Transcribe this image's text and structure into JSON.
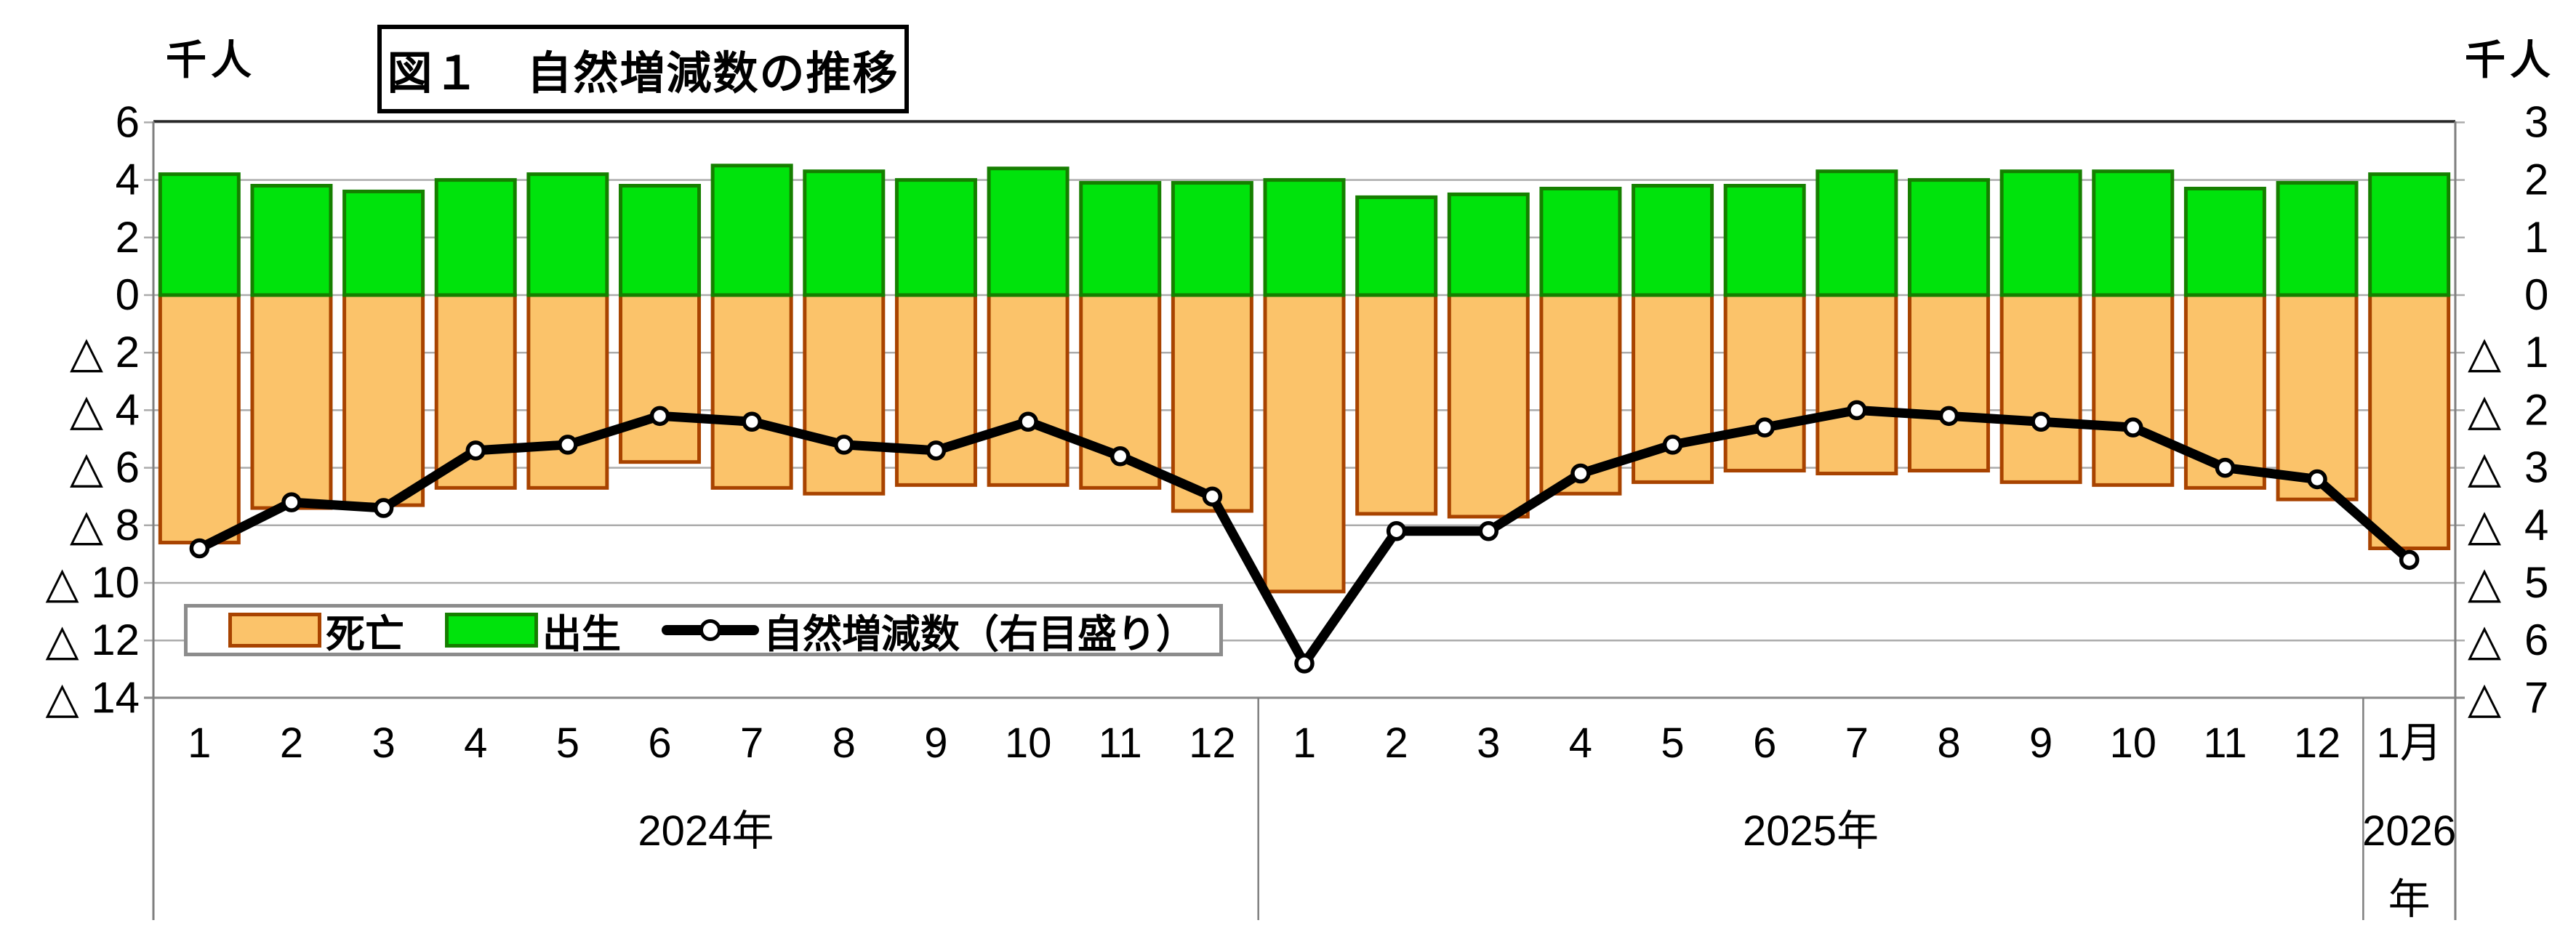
{
  "page": {
    "background": "#ffffff"
  },
  "header": {
    "title": "図１　自然増減数の推移",
    "unit_label_left": "千人",
    "unit_label_right": "千人"
  },
  "legend": {
    "items": [
      {
        "label": "死亡",
        "type": "bar",
        "fill": "#FBC36A",
        "border": "#A84300"
      },
      {
        "label": "出生",
        "type": "bar",
        "fill": "#00E30C",
        "border": "#157F00"
      },
      {
        "label": "自然増減数（右目盛り）",
        "type": "line",
        "color": "#000000"
      }
    ]
  },
  "chart_data": {
    "type": "bar+line combo (monthly, dual axis)",
    "title": "図１　自然増減数の推移",
    "unit_left": "千人",
    "unit_right": "千人",
    "negative_prefix": "△",
    "grid": true,
    "legend_position": "inside-bottom-left",
    "groups": [
      {
        "year_lines": [
          "2024年"
        ],
        "months": [
          "1",
          "2",
          "3",
          "4",
          "5",
          "6",
          "7",
          "8",
          "9",
          "10",
          "11",
          "12"
        ]
      },
      {
        "year_lines": [
          "2025年"
        ],
        "months": [
          "1",
          "2",
          "3",
          "4",
          "5",
          "6",
          "7",
          "8",
          "9",
          "10",
          "11",
          "12"
        ]
      },
      {
        "year_lines": [
          "2026",
          "年"
        ],
        "months": [
          "1月"
        ]
      }
    ],
    "left_axis": {
      "min": -14,
      "max": 6,
      "step": 2,
      "ticks": [
        "6",
        "4",
        "2",
        "0",
        "△ 2",
        "△ 4",
        "△ 6",
        "△ 8",
        "△ 10",
        "△ 12",
        "△ 14"
      ]
    },
    "right_axis": {
      "min": -7,
      "max": 3,
      "step": 1,
      "ticks": [
        "3",
        "2",
        "1",
        "0",
        "△ 1",
        "△ 2",
        "△ 3",
        "△ 4",
        "△ 5",
        "△ 6",
        "△ 7"
      ]
    },
    "series": [
      {
        "name": "出生",
        "type": "bar",
        "axis": "left",
        "fill": "#00E30C",
        "border": "#157F00",
        "values": [
          4.2,
          3.8,
          3.6,
          4.0,
          4.2,
          3.8,
          4.5,
          4.3,
          4.0,
          4.4,
          3.9,
          3.9,
          4.0,
          3.4,
          3.5,
          3.7,
          3.8,
          3.8,
          4.3,
          4.0,
          4.3,
          4.3,
          3.7,
          3.9,
          4.2
        ]
      },
      {
        "name": "死亡",
        "type": "bar",
        "axis": "left",
        "fill": "#FBC36A",
        "border": "#A84300",
        "values": [
          -8.6,
          -7.4,
          -7.3,
          -6.7,
          -6.7,
          -5.8,
          -6.7,
          -6.9,
          -6.6,
          -6.6,
          -6.7,
          -7.5,
          -10.3,
          -7.6,
          -7.7,
          -6.9,
          -6.5,
          -6.1,
          -6.2,
          -6.1,
          -6.5,
          -6.6,
          -6.7,
          -7.1,
          -8.8
        ]
      },
      {
        "name": "自然増減数（右目盛り）",
        "type": "line",
        "axis": "right",
        "color": "#000000",
        "marker": "white-circle",
        "values": [
          -4.4,
          -3.6,
          -3.7,
          -2.7,
          -2.6,
          -2.1,
          -2.2,
          -2.6,
          -2.7,
          -2.2,
          -2.8,
          -3.5,
          -6.4,
          -4.1,
          -4.1,
          -3.1,
          -2.6,
          -2.3,
          -2.0,
          -2.1,
          -2.2,
          -2.3,
          -3.0,
          -3.2,
          -4.6
        ]
      }
    ]
  }
}
